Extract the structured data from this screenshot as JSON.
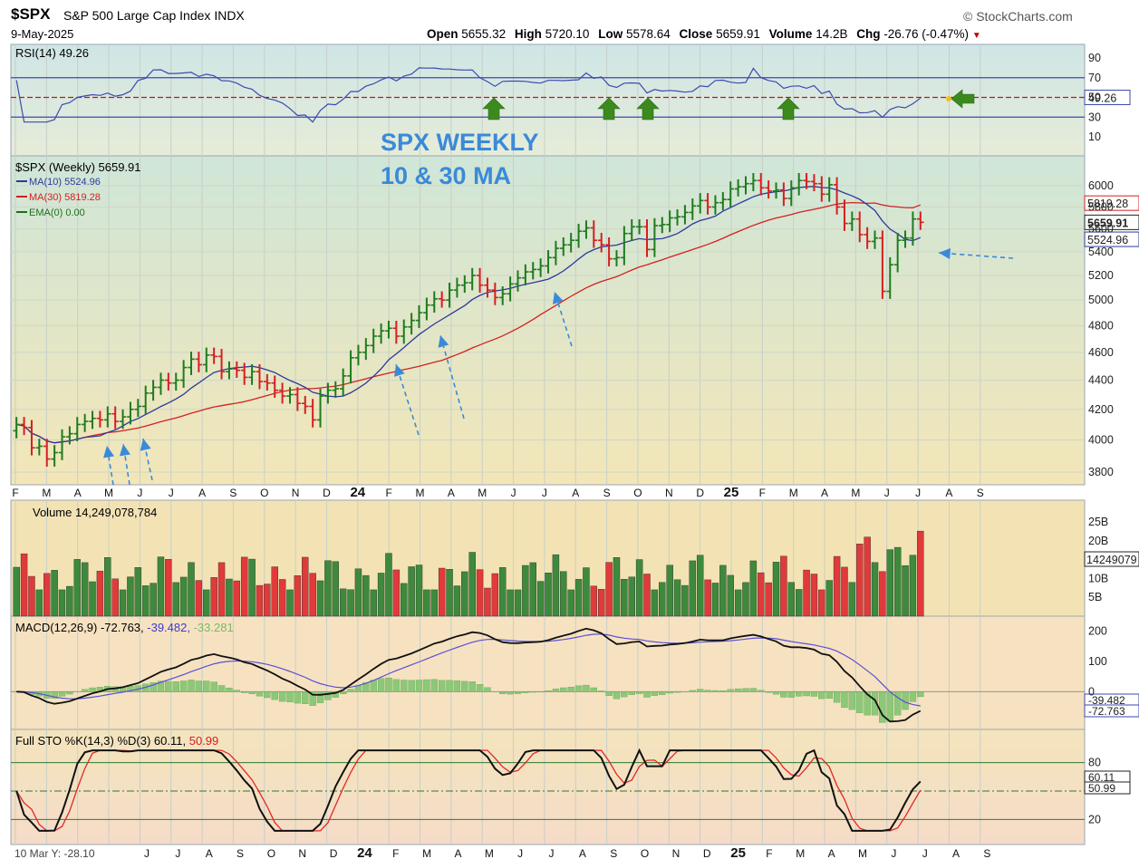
{
  "header": {
    "ticker": "$SPX",
    "name": "S&P 500 Large Cap Index",
    "exchange": "INDX",
    "date": "9-May-2025",
    "brand": "StockCharts.com",
    "open_label": "Open",
    "open": "5655.32",
    "high_label": "High",
    "high": "5720.10",
    "low_label": "Low",
    "low": "5578.64",
    "close_label": "Close",
    "close": "5659.91",
    "volume_label": "Volume",
    "volume": "14.2B",
    "chg_label": "Chg",
    "chg": "-26.76 (-0.47%)",
    "chg_arrow": "▼"
  },
  "annotation": {
    "line1": "SPX WEEKLY",
    "line2": "10 & 30 MA"
  },
  "colors": {
    "up": "#1e7b1e",
    "down": "#d42020",
    "ma10": "#2b3a9c",
    "ma30": "#d42020",
    "annotation": "#3a8ad8",
    "green_arrow": "#3c8a1e",
    "macd_hist": "#8cc878",
    "panel_fill_top": "#cfe6d8",
    "panel_fill_bottom": "#f3e6b8",
    "lower_panel_fill": "#f6e6c2"
  },
  "rsi": {
    "label": "RSI(14) 49.26",
    "ticks": [
      "90",
      "70",
      "50",
      "30",
      "10"
    ],
    "badge": "49.26"
  },
  "price": {
    "label": "$SPX (Weekly) 5659.91",
    "ma10_label": "MA(10) 5524.96",
    "ma30_label": "MA(30) 5819.28",
    "ema_label": "EMA(0) 0.00",
    "ticks": [
      "6000",
      "5800",
      "5600",
      "5400",
      "5200",
      "5000",
      "4800",
      "4600",
      "4400",
      "4200",
      "4000",
      "3800"
    ],
    "badges": {
      "ma30": "5819.28",
      "close": "5659.91",
      "ma10": "5524.96"
    }
  },
  "xaxis": {
    "main": [
      "F",
      "M",
      "A",
      "M",
      "J",
      "J",
      "A",
      "S",
      "O",
      "N",
      "D",
      "24",
      "F",
      "M",
      "A",
      "M",
      "J",
      "J",
      "A",
      "S",
      "O",
      "N",
      "D",
      "25",
      "F",
      "M",
      "A",
      "M",
      "J",
      "J",
      "A",
      "S"
    ],
    "bottom": [
      "J",
      "J",
      "A",
      "S",
      "O",
      "N",
      "D",
      "24",
      "F",
      "M",
      "A",
      "M",
      "J",
      "J",
      "A",
      "S",
      "O",
      "N",
      "D",
      "25",
      "F",
      "M",
      "A",
      "M",
      "J",
      "J",
      "A",
      "S"
    ],
    "bottom_left": "10 Mar Y: -28.10"
  },
  "volume": {
    "label": "Volume 14,249,078,784",
    "ticks": [
      "25B",
      "20B",
      "10B",
      "5B"
    ],
    "badge": "14249079"
  },
  "macd": {
    "label": "MACD(12,26,9)",
    "v1": "-72.763,",
    "v2": "-39.482,",
    "v3": "-33.281",
    "ticks": [
      "200",
      "100",
      "0"
    ],
    "badges": [
      "-39.482",
      "-72.763"
    ]
  },
  "sto": {
    "label": "Full STO %K(14,3) %D(3)",
    "k": "60.11,",
    "d": "50.99",
    "ticks": [
      "80",
      "20"
    ],
    "badges": [
      "60.11",
      "50.99"
    ]
  },
  "chart_data": {
    "type": "ohlc",
    "title": "$SPX (Weekly)",
    "period": "weekly",
    "ylim": [
      3700,
      6250
    ],
    "yscale": "log",
    "x_start": "2023-02",
    "x_end": "2025-05-09",
    "close_approx": [
      4100,
      4080,
      3950,
      3960,
      3880,
      3920,
      4020,
      4040,
      4100,
      4120,
      4140,
      4130,
      4170,
      4120,
      4150,
      4200,
      4220,
      4310,
      4350,
      4400,
      4380,
      4400,
      4490,
      4550,
      4510,
      4580,
      4570,
      4460,
      4480,
      4470,
      4420,
      4460,
      4390,
      4380,
      4330,
      4290,
      4300,
      4240,
      4220,
      4130,
      4290,
      4330,
      4340,
      4430,
      4560,
      4600,
      4650,
      4720,
      4760,
      4780,
      4720,
      4790,
      4840,
      4900,
      4960,
      5010,
      5000,
      5080,
      5120,
      5140,
      5200,
      5120,
      5080,
      5020,
      5050,
      5130,
      5180,
      5230,
      5250,
      5280,
      5350,
      5430,
      5460,
      5500,
      5580,
      5610,
      5500,
      5460,
      5340,
      5350,
      5560,
      5620,
      5620,
      5420,
      5630,
      5640,
      5700,
      5710,
      5750,
      5810,
      5860,
      5800,
      5840,
      5870,
      5970,
      5990,
      6020,
      6050,
      5980,
      5950,
      5960,
      5880,
      5980,
      6050,
      6040,
      6020,
      5920,
      6010,
      5800,
      5650,
      5690,
      5550,
      5490,
      5520,
      5070,
      5290,
      5500,
      5520,
      5690,
      5660
    ],
    "ma10_end": 5524.96,
    "ma30_end": 5819.28,
    "last": {
      "open": 5655.32,
      "high": 5720.1,
      "low": 5578.64,
      "close": 5659.91,
      "volume": "14.2B"
    },
    "rsi": {
      "period": 14,
      "last": 49.26,
      "ylim": [
        0,
        100
      ]
    },
    "macd": {
      "params": [
        12,
        26,
        9
      ],
      "macd": -72.763,
      "signal": -39.482,
      "hist": -33.281
    },
    "stochastic": {
      "k": 60.11,
      "d": 50.99
    }
  }
}
